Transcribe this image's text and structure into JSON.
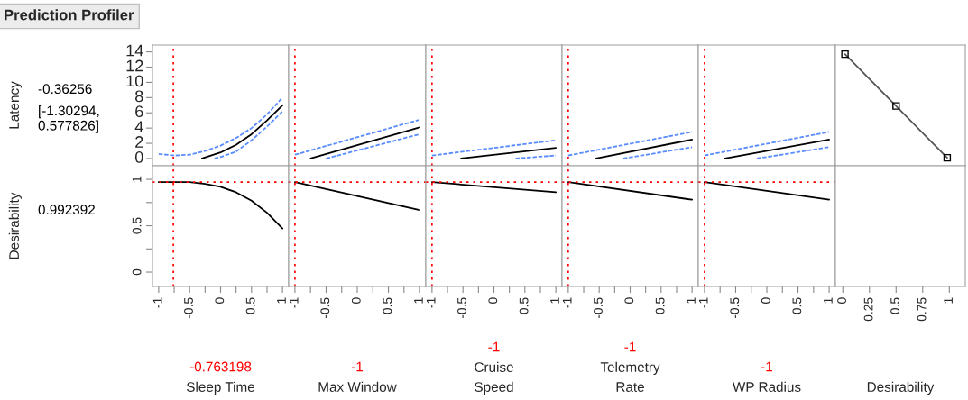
{
  "chart_data": [
    {
      "type": "line",
      "title": "Prediction Profiler",
      "ylabel": "Latency",
      "annotations": [
        "-0.36256",
        "[-1.30294,\n0.577826]"
      ],
      "xlim": [
        -1.1,
        1.1
      ],
      "ylim": [
        -0.95,
        14.9
      ],
      "yticks": [
        0,
        2,
        4,
        6,
        8,
        10,
        12,
        14
      ],
      "tick_labels": "y",
      "ref_lines": [
        {
          "axis": "x",
          "value": -0.763198,
          "color": "#ff0000",
          "line_style": "dotted"
        }
      ],
      "series": [
        {
          "color": "#5b8cff",
          "line_style": "dashed",
          "x": [
            -1,
            -0.75,
            -0.5,
            -0.25,
            0,
            0.25,
            0.5,
            0.75,
            1
          ],
          "values": [
            0.6,
            0.4,
            0.5,
            1.0,
            1.7,
            2.7,
            4.0,
            5.8,
            8.0
          ]
        },
        {
          "color": "#5b8cff",
          "line_style": "dashed",
          "x": [
            -0.1,
            0,
            0.25,
            0.5,
            0.75,
            1
          ],
          "values": [
            0,
            0.2,
            0.9,
            2.4,
            4.2,
            6.2
          ]
        },
        {
          "color": "#000000",
          "line_style": "solid",
          "x": [
            -0.3,
            0,
            0.25,
            0.5,
            0.75,
            1
          ],
          "values": [
            0,
            0.8,
            1.8,
            3.2,
            5.0,
            7.0
          ]
        }
      ]
    },
    {
      "type": "line",
      "xlim": [
        -1.1,
        1.1
      ],
      "ylim": [
        -0.95,
        14.9
      ],
      "tick_labels": false,
      "ref_lines": [
        {
          "axis": "x",
          "value": -1,
          "color": "#ff0000",
          "line_style": "dotted"
        }
      ],
      "series": [
        {
          "color": "#5b8cff",
          "line_style": "dashed",
          "x": [
            -1,
            1
          ],
          "values": [
            0.5,
            5.1
          ]
        },
        {
          "color": "#5b8cff",
          "line_style": "dashed",
          "x": [
            -0.5,
            1
          ],
          "values": [
            0,
            3.2
          ]
        },
        {
          "color": "#000000",
          "line_style": "solid",
          "x": [
            -0.75,
            1
          ],
          "values": [
            0,
            4.1
          ]
        }
      ]
    },
    {
      "type": "line",
      "xlim": [
        -1.1,
        1.1
      ],
      "ylim": [
        -0.95,
        14.9
      ],
      "tick_labels": false,
      "ref_lines": [
        {
          "axis": "x",
          "value": -1,
          "color": "#ff0000",
          "line_style": "dotted"
        }
      ],
      "series": [
        {
          "color": "#5b8cff",
          "line_style": "dashed",
          "x": [
            -1,
            1
          ],
          "values": [
            0.4,
            2.4
          ]
        },
        {
          "color": "#5b8cff",
          "line_style": "dashed",
          "x": [
            0.35,
            1
          ],
          "values": [
            0,
            0.4
          ]
        },
        {
          "color": "#000000",
          "line_style": "solid",
          "x": [
            -0.53,
            1
          ],
          "values": [
            0,
            1.4
          ]
        }
      ]
    },
    {
      "type": "line",
      "xlim": [
        -1.1,
        1.1
      ],
      "ylim": [
        -0.95,
        14.9
      ],
      "tick_labels": false,
      "ref_lines": [
        {
          "axis": "x",
          "value": -1,
          "color": "#ff0000",
          "line_style": "dotted"
        }
      ],
      "series": [
        {
          "color": "#5b8cff",
          "line_style": "dashed",
          "x": [
            -1,
            1
          ],
          "values": [
            0.4,
            3.5
          ]
        },
        {
          "color": "#5b8cff",
          "line_style": "dashed",
          "x": [
            -0.11,
            1
          ],
          "values": [
            0,
            1.5
          ]
        },
        {
          "color": "#000000",
          "line_style": "solid",
          "x": [
            -0.55,
            1
          ],
          "values": [
            0,
            2.5
          ]
        }
      ]
    },
    {
      "type": "line",
      "xlim": [
        -1.1,
        1.1
      ],
      "ylim": [
        -0.95,
        14.9
      ],
      "tick_labels": false,
      "ref_lines": [
        {
          "axis": "x",
          "value": -1,
          "color": "#ff0000",
          "line_style": "dotted"
        }
      ],
      "series": [
        {
          "color": "#5b8cff",
          "line_style": "dashed",
          "x": [
            -1,
            1
          ],
          "values": [
            0.4,
            3.5
          ]
        },
        {
          "color": "#5b8cff",
          "line_style": "dashed",
          "x": [
            -0.16,
            1
          ],
          "values": [
            0,
            1.5
          ]
        },
        {
          "color": "#000000",
          "line_style": "solid",
          "x": [
            -0.67,
            1
          ],
          "values": [
            0,
            2.5
          ]
        }
      ]
    },
    {
      "type": "line",
      "xlim": [
        -0.07,
        1.15
      ],
      "ylim": [
        -0.95,
        14.9
      ],
      "tick_labels": false,
      "marker": "square",
      "series": [
        {
          "color": "#555555",
          "line_style": "solid",
          "x": [
            0.02,
            0.5,
            0.98
          ],
          "values": [
            13.7,
            6.9,
            0.1
          ]
        }
      ]
    },
    {
      "type": "line",
      "ylabel": "Desirability",
      "annotations": [
        "0.992392"
      ],
      "xlabel": "Sleep Time",
      "xlim": [
        -1.1,
        1.1
      ],
      "ylim": [
        -0.155,
        1.146
      ],
      "yticks": [
        0,
        {
          "value": 0.25,
          "label": null
        },
        0.5,
        {
          "value": 0.75,
          "label": null
        },
        1
      ],
      "xticks": [
        -1,
        {
          "value": -0.75,
          "label": null
        },
        -0.5,
        {
          "value": -0.25,
          "label": null
        },
        0,
        {
          "value": 0.25,
          "label": null
        },
        0.5,
        {
          "value": 0.75,
          "label": null
        },
        1
      ],
      "ref_lines": [
        {
          "axis": "x",
          "value": -0.763198,
          "label": "-0.763198",
          "color": "#ff0000",
          "line_style": "dotted"
        },
        {
          "axis": "y",
          "value": 0.97,
          "color": "#ff0000",
          "line_style": "dotted"
        }
      ],
      "series": [
        {
          "color": "#000000",
          "line_style": "solid",
          "x": [
            -1,
            -0.5,
            -0.25,
            0,
            0.25,
            0.5,
            0.75,
            1
          ],
          "values": [
            0.97,
            0.97,
            0.95,
            0.92,
            0.86,
            0.77,
            0.64,
            0.47
          ]
        }
      ]
    },
    {
      "type": "line",
      "xlabel": "Max Window",
      "xlim": [
        -1.1,
        1.1
      ],
      "ylim": [
        -0.155,
        1.146
      ],
      "tick_labels": "x",
      "xticks": [
        -1,
        {
          "value": -0.75,
          "label": null
        },
        -0.5,
        {
          "value": -0.25,
          "label": null
        },
        0,
        {
          "value": 0.25,
          "label": null
        },
        0.5,
        {
          "value": 0.75,
          "label": null
        },
        1
      ],
      "ref_lines": [
        {
          "axis": "x",
          "value": -1,
          "label": "-1",
          "color": "#ff0000",
          "line_style": "dotted"
        },
        {
          "axis": "y",
          "value": 0.97,
          "color": "#ff0000",
          "line_style": "dotted"
        }
      ],
      "series": [
        {
          "color": "#000000",
          "line_style": "solid",
          "x": [
            -1,
            1
          ],
          "values": [
            0.97,
            0.67
          ]
        }
      ]
    },
    {
      "type": "line",
      "xlabel": "Cruise\nSpeed",
      "xlim": [
        -1.1,
        1.1
      ],
      "ylim": [
        -0.155,
        1.146
      ],
      "tick_labels": "x",
      "xticks": [
        -1,
        {
          "value": -0.75,
          "label": null
        },
        -0.5,
        {
          "value": -0.25,
          "label": null
        },
        0,
        {
          "value": 0.25,
          "label": null
        },
        0.5,
        {
          "value": 0.75,
          "label": null
        },
        1
      ],
      "ref_lines": [
        {
          "axis": "x",
          "value": -1,
          "label": "-1",
          "color": "#ff0000",
          "line_style": "dotted"
        },
        {
          "axis": "y",
          "value": 0.97,
          "color": "#ff0000",
          "line_style": "dotted"
        }
      ],
      "series": [
        {
          "color": "#000000",
          "line_style": "solid",
          "x": [
            -1,
            1
          ],
          "values": [
            0.97,
            0.86
          ]
        }
      ]
    },
    {
      "type": "line",
      "xlabel": "Telemetry\nRate",
      "xlim": [
        -1.1,
        1.1
      ],
      "ylim": [
        -0.155,
        1.146
      ],
      "tick_labels": "x",
      "xticks": [
        -1,
        {
          "value": -0.75,
          "label": null
        },
        -0.5,
        {
          "value": -0.25,
          "label": null
        },
        0,
        {
          "value": 0.25,
          "label": null
        },
        0.5,
        {
          "value": 0.75,
          "label": null
        },
        1
      ],
      "ref_lines": [
        {
          "axis": "x",
          "value": -1,
          "label": "-1",
          "color": "#ff0000",
          "line_style": "dotted"
        },
        {
          "axis": "y",
          "value": 0.97,
          "color": "#ff0000",
          "line_style": "dotted"
        }
      ],
      "series": [
        {
          "color": "#000000",
          "line_style": "solid",
          "x": [
            -1,
            1
          ],
          "values": [
            0.97,
            0.78
          ]
        }
      ]
    },
    {
      "type": "line",
      "xlabel": "WP Radius",
      "xlim": [
        -1.1,
        1.1
      ],
      "ylim": [
        -0.155,
        1.146
      ],
      "tick_labels": "x",
      "xticks": [
        -1,
        {
          "value": -0.75,
          "label": null
        },
        -0.5,
        {
          "value": -0.25,
          "label": null
        },
        0,
        {
          "value": 0.25,
          "label": null
        },
        0.5,
        {
          "value": 0.75,
          "label": null
        },
        1
      ],
      "ref_lines": [
        {
          "axis": "x",
          "value": -1,
          "label": "-1",
          "color": "#ff0000",
          "line_style": "dotted"
        },
        {
          "axis": "y",
          "value": 0.97,
          "color": "#ff0000",
          "line_style": "dotted"
        }
      ],
      "series": [
        {
          "color": "#000000",
          "line_style": "solid",
          "x": [
            -1,
            1
          ],
          "values": [
            0.97,
            0.78
          ]
        }
      ]
    },
    {
      "type": "line",
      "xlabel": "Desirability",
      "xlim": [
        -0.07,
        1.15
      ],
      "ylim": [
        -0.155,
        1.146
      ],
      "tick_labels": "x",
      "xticks": [
        0,
        0.25,
        0.5,
        0.75,
        1
      ]
    }
  ]
}
